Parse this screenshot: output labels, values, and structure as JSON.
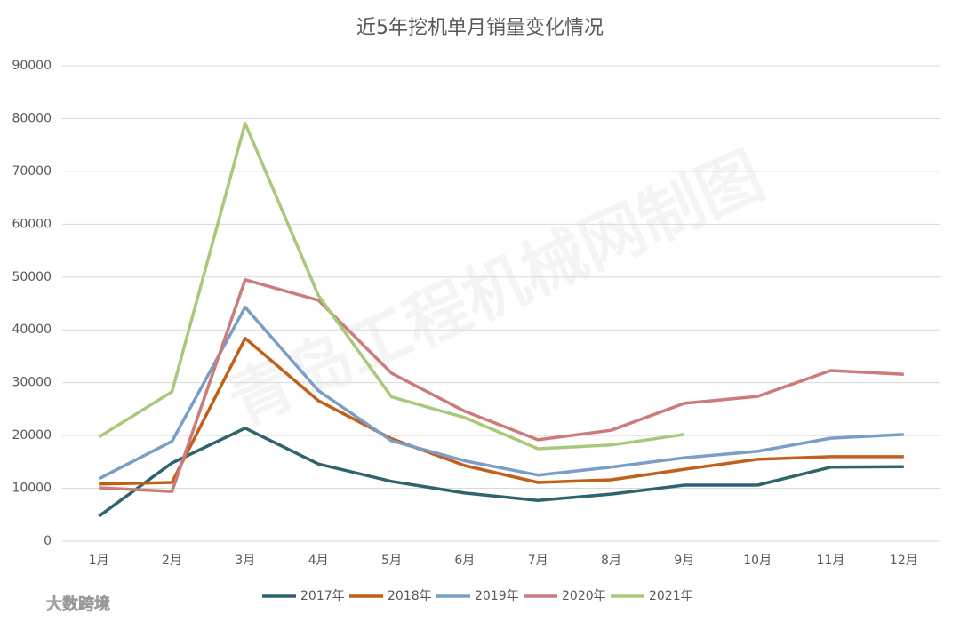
{
  "chart_data": {
    "type": "line",
    "title": "近5年挖机单月销量变化情况",
    "categories": [
      "1月",
      "2月",
      "3月",
      "4月",
      "5月",
      "6月",
      "7月",
      "8月",
      "9月",
      "10月",
      "11月",
      "12月"
    ],
    "series": [
      {
        "name": "2017年",
        "color": "#2e6470",
        "values": [
          4700,
          14800,
          21400,
          14600,
          11300,
          9100,
          7700,
          8900,
          10600,
          10600,
          14000,
          14100
        ]
      },
      {
        "name": "2018年",
        "color": "#c0601a",
        "values": [
          10800,
          11100,
          38400,
          26600,
          19400,
          14300,
          11100,
          11600,
          13600,
          15500,
          16000,
          16000
        ]
      },
      {
        "name": "2019年",
        "color": "#7a9ec8",
        "values": [
          11800,
          18900,
          44300,
          28500,
          19000,
          15200,
          12500,
          14000,
          15800,
          17000,
          19500,
          20200
        ]
      },
      {
        "name": "2020年",
        "color": "#cc7b7b",
        "values": [
          10100,
          9400,
          49500,
          45600,
          31800,
          24600,
          19200,
          21000,
          26100,
          27400,
          32300,
          31600
        ]
      },
      {
        "name": "2021年",
        "color": "#a9c97a",
        "values": [
          19700,
          28300,
          79100,
          46500,
          27300,
          23400,
          17500,
          18200,
          20200,
          null,
          null,
          null
        ]
      }
    ],
    "ylim": [
      0,
      90000
    ],
    "yticks": [
      0,
      10000,
      20000,
      30000,
      40000,
      50000,
      60000,
      70000,
      80000,
      90000
    ],
    "grid": true,
    "legend": "bottom",
    "watermark": "青岛工程机械网制图",
    "logo_text": "大数跨境"
  }
}
